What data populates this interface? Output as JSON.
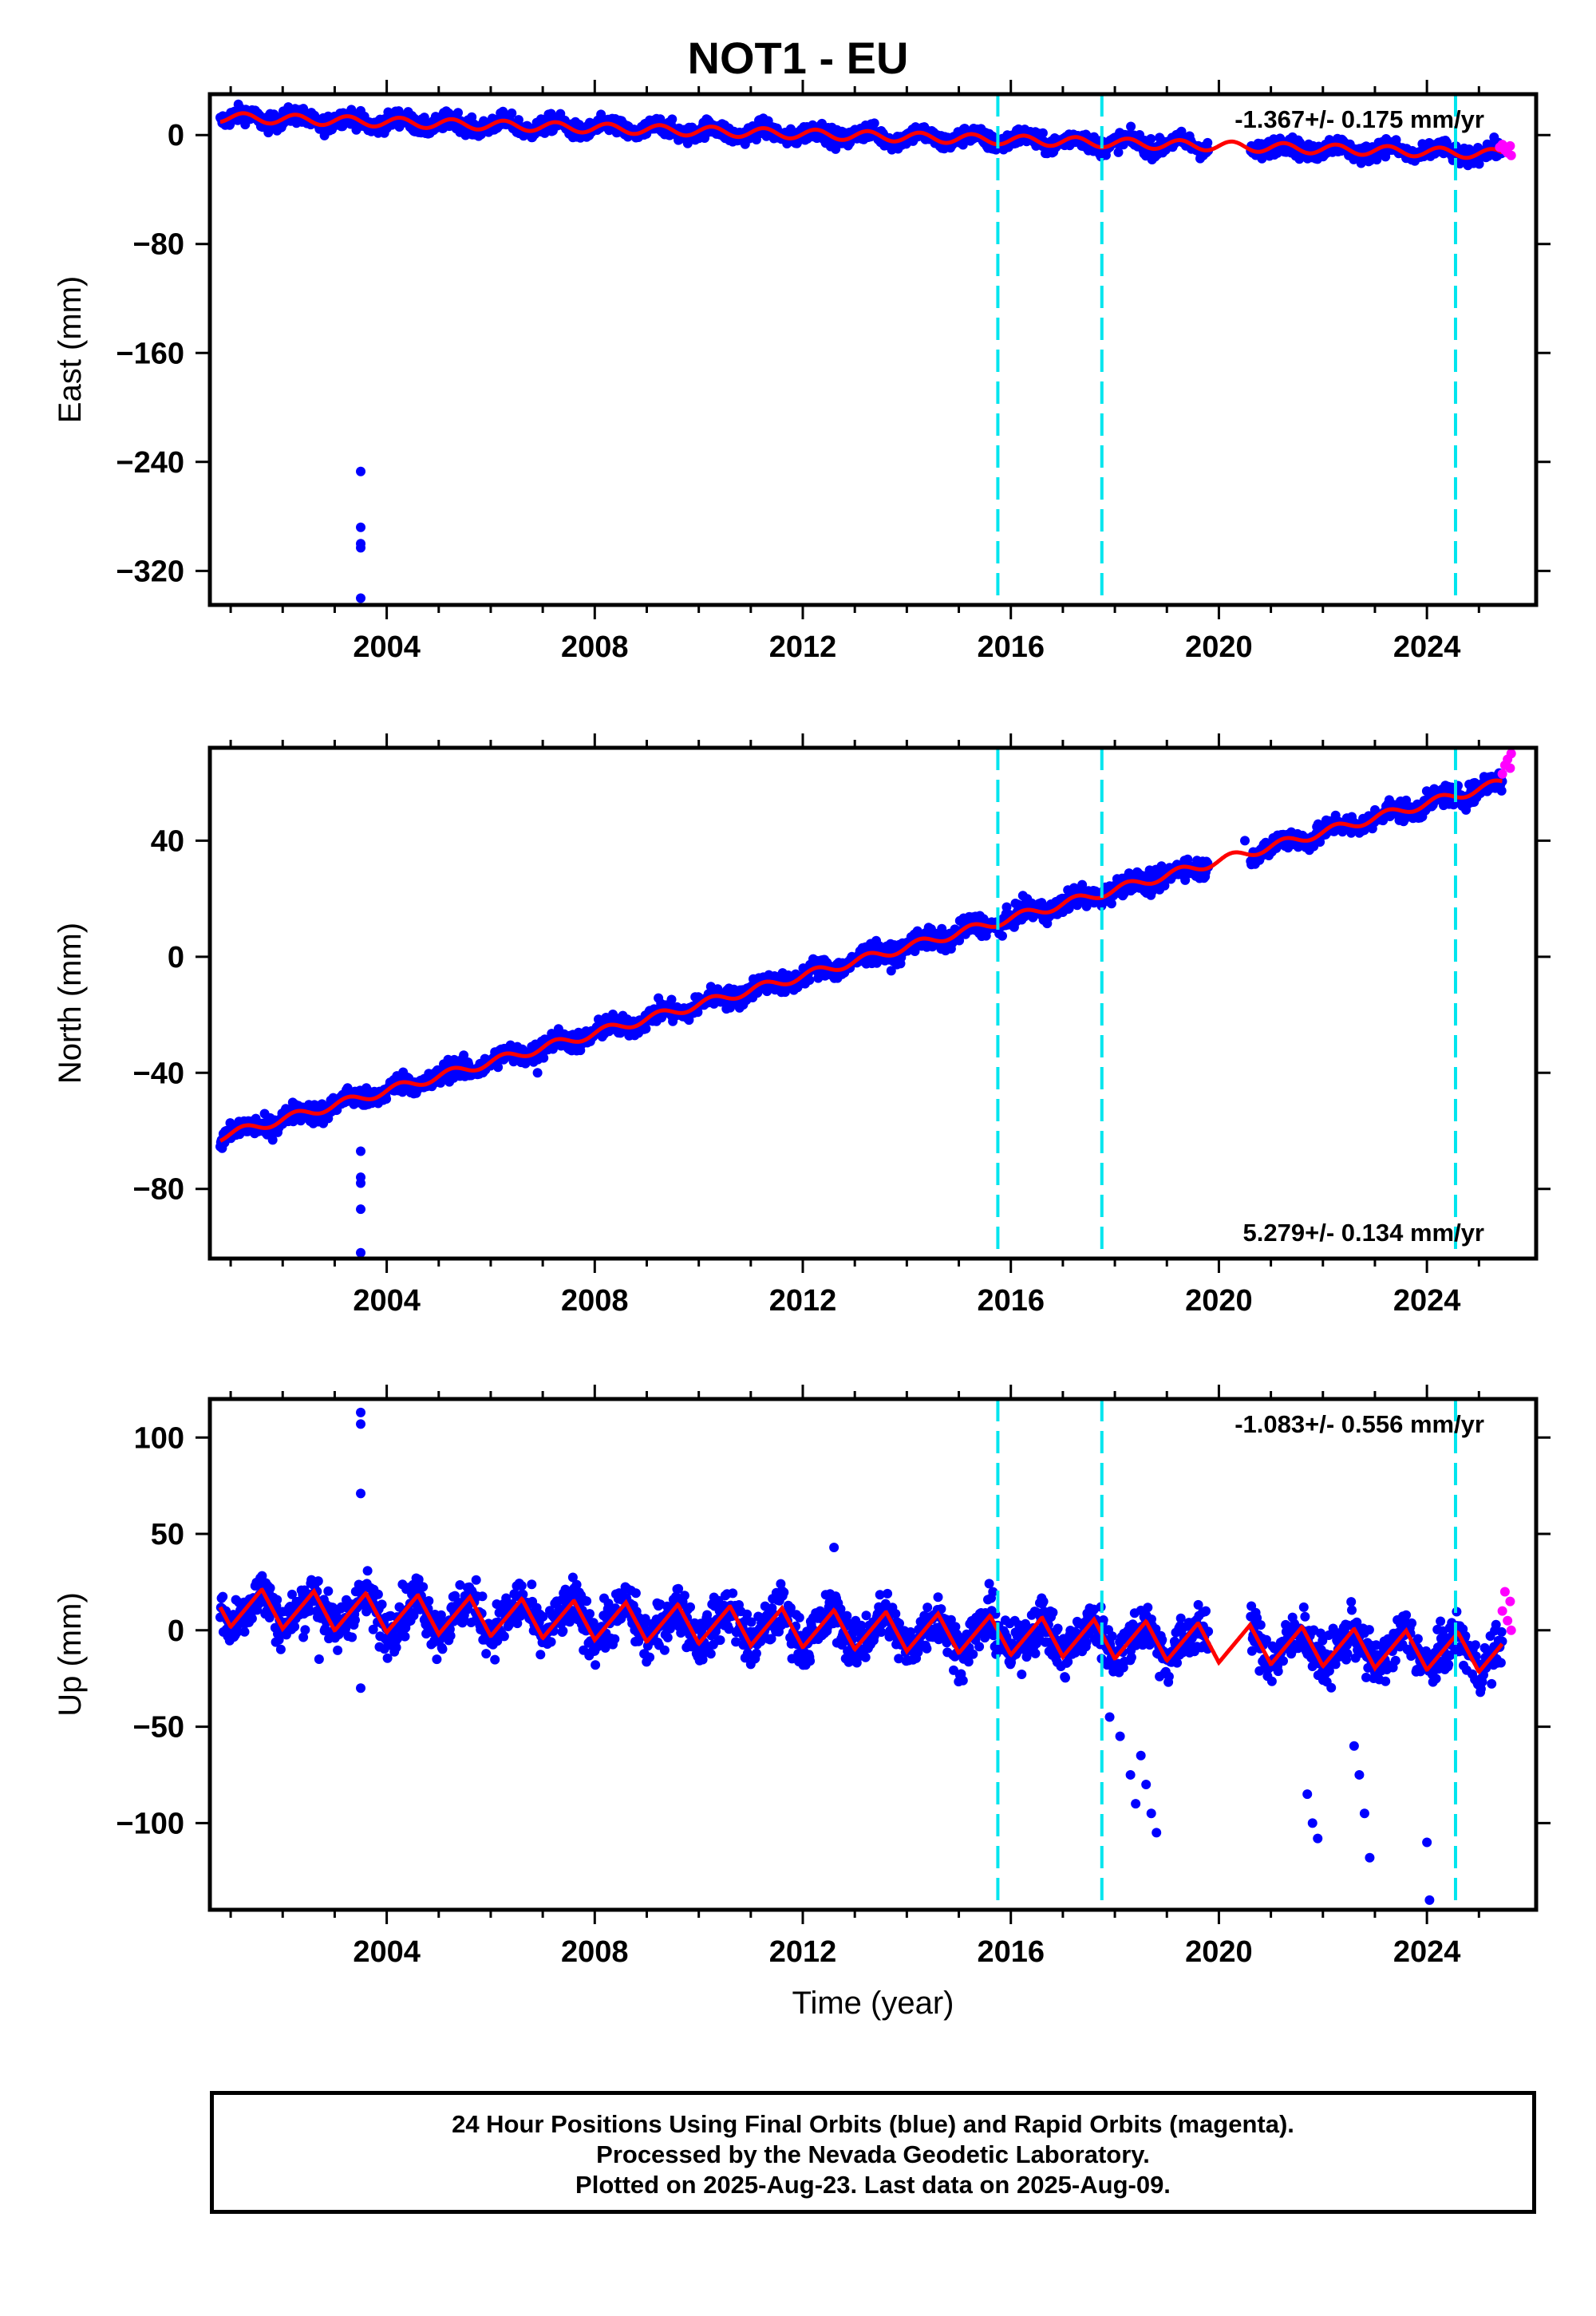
{
  "title": "NOT1 - EU",
  "footer": {
    "line1": "24 Hour Positions Using Final Orbits (blue) and Rapid Orbits (magenta).",
    "line2": "Processed by the Nevada Geodetic Laboratory.",
    "line3": "Plotted on 2025-Aug-23. Last data on 2025-Aug-09."
  },
  "colors": {
    "final": "#0000ff",
    "rapid": "#ff00ff",
    "model": "#ff0000",
    "steps": "#00e5ee"
  },
  "chart_data": [
    {
      "type": "scatter",
      "title": "",
      "xlabel": "",
      "ylabel": "East (mm)",
      "xlim": [
        2000.6,
        2026.1
      ],
      "ylim": [
        -345,
        30
      ],
      "xticks": [
        2004,
        2008,
        2012,
        2016,
        2020,
        2024
      ],
      "yticks": [
        0,
        -80,
        -160,
        -240,
        -320
      ],
      "rate_label": "-1.367+/- 0.175 mm/yr",
      "rate_position": "top-right",
      "step_lines": [
        2015.75,
        2017.75,
        2024.55
      ],
      "outliers": [
        [
          2003.5,
          -247
        ],
        [
          2003.5,
          -288
        ],
        [
          2003.5,
          -300
        ],
        [
          2003.5,
          -303
        ],
        [
          2003.5,
          -340
        ]
      ],
      "trend": {
        "y0": 13,
        "y1": -14
      },
      "seasonal": {
        "amplitude": 3.5,
        "period": 1.0
      },
      "scatter_noise": 4.5,
      "gap": [
        2019.8,
        2020.6
      ],
      "rapid": [
        [
          2025.4,
          -9
        ],
        [
          2025.45,
          -7
        ],
        [
          2025.5,
          -11
        ],
        [
          2025.55,
          -13
        ],
        [
          2025.6,
          -8
        ],
        [
          2025.62,
          -15
        ]
      ],
      "series": [
        {
          "name": "Final Orbits (blue)",
          "values": []
        },
        {
          "name": "Rapid Orbits (magenta)",
          "values": []
        }
      ]
    },
    {
      "type": "scatter",
      "title": "",
      "xlabel": "",
      "ylabel": "North (mm)",
      "xlim": [
        2000.6,
        2026.1
      ],
      "ylim": [
        -104,
        72
      ],
      "xticks": [
        2004,
        2008,
        2012,
        2016,
        2020,
        2024
      ],
      "yticks": [
        40,
        0,
        -40,
        -80
      ],
      "rate_label": "5.279+/- 0.134 mm/yr",
      "rate_position": "bottom-right",
      "step_lines": [
        2015.75,
        2017.75,
        2024.55
      ],
      "outliers": [
        [
          2003.5,
          -67
        ],
        [
          2003.5,
          -76
        ],
        [
          2003.5,
          -78
        ],
        [
          2003.5,
          -87
        ],
        [
          2003.5,
          -102
        ],
        [
          2006.9,
          -40
        ],
        [
          2020.5,
          40
        ]
      ],
      "trend": {
        "y0": -62,
        "y1": 60
      },
      "seasonal": {
        "amplitude": 1.5,
        "period": 1.0
      },
      "scatter_noise": 2.5,
      "gap": [
        2019.8,
        2020.6
      ],
      "rapid": [
        [
          2025.45,
          63
        ],
        [
          2025.5,
          66
        ],
        [
          2025.55,
          68
        ],
        [
          2025.6,
          65
        ],
        [
          2025.62,
          70
        ]
      ],
      "series": [
        {
          "name": "Final Orbits (blue)",
          "values": []
        },
        {
          "name": "Rapid Orbits (magenta)",
          "values": []
        }
      ]
    },
    {
      "type": "scatter",
      "title": "",
      "xlabel": "Time (year)",
      "ylabel": "Up (mm)",
      "xlim": [
        2000.6,
        2026.1
      ],
      "ylim": [
        -145,
        120
      ],
      "xticks": [
        2004,
        2008,
        2012,
        2016,
        2020,
        2024
      ],
      "yticks": [
        100,
        50,
        0,
        -50,
        -100
      ],
      "rate_label": "-1.083+/- 0.556 mm/yr",
      "rate_position": "top-right",
      "step_lines": [
        2015.75,
        2017.75,
        2024.55
      ],
      "outliers": [
        [
          2003.5,
          113
        ],
        [
          2003.5,
          107
        ],
        [
          2003.5,
          71
        ],
        [
          2003.5,
          -30
        ],
        [
          2002.7,
          -15
        ],
        [
          2012.6,
          43
        ],
        [
          2017.9,
          -45
        ],
        [
          2018.1,
          -55
        ],
        [
          2018.3,
          -75
        ],
        [
          2018.4,
          -90
        ],
        [
          2018.5,
          -65
        ],
        [
          2018.6,
          -80
        ],
        [
          2018.7,
          -95
        ],
        [
          2018.8,
          -105
        ],
        [
          2021.7,
          -85
        ],
        [
          2021.8,
          -100
        ],
        [
          2021.9,
          -108
        ],
        [
          2022.6,
          -60
        ],
        [
          2022.7,
          -75
        ],
        [
          2022.8,
          -95
        ],
        [
          2022.9,
          -118
        ],
        [
          2024.0,
          -110
        ],
        [
          2024.05,
          -140
        ]
      ],
      "trend": {
        "y0": 12,
        "y1": -12
      },
      "seasonal": {
        "amplitude": 10,
        "period": 1.0
      },
      "scatter_noise": 9,
      "gap": [
        2019.8,
        2020.6
      ],
      "rapid": [
        [
          2025.45,
          10
        ],
        [
          2025.5,
          20
        ],
        [
          2025.55,
          5
        ],
        [
          2025.6,
          15
        ],
        [
          2025.62,
          0
        ]
      ],
      "series": [
        {
          "name": "Final Orbits (blue)",
          "values": []
        },
        {
          "name": "Rapid Orbits (magenta)",
          "values": []
        }
      ]
    }
  ]
}
